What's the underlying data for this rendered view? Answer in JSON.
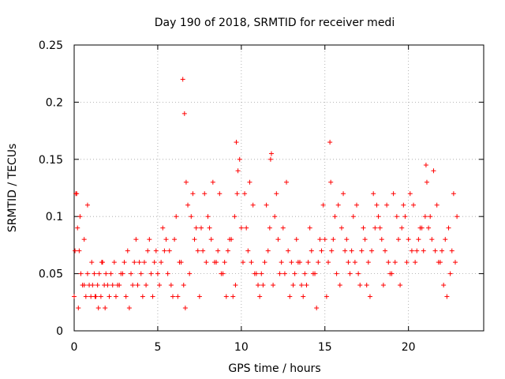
{
  "chart_data": {
    "type": "scatter",
    "title": "Day 190 of 2018, SRMTID for receiver medi",
    "xlabel": "GPS time / hours",
    "ylabel": "SRMTID / TECUs",
    "xlim": [
      0,
      24.5
    ],
    "ylim": [
      0,
      0.25
    ],
    "x_ticks": [
      0,
      5,
      10,
      15,
      20
    ],
    "x_tick_labels": [
      "0",
      "5",
      "10",
      "15",
      "20"
    ],
    "y_ticks": [
      0,
      0.05,
      0.1,
      0.15,
      0.2,
      0.25
    ],
    "y_tick_labels": [
      "0",
      "0.05",
      "0.1",
      "0.15",
      "0.2",
      "0.25"
    ],
    "grid": true,
    "marker": "+",
    "series": [
      {
        "name": "SRMTID",
        "color": "#ff0000",
        "x": [
          0.0,
          0.1,
          0.2,
          0.3,
          0.4,
          0.5,
          0.6,
          0.7,
          0.8,
          0.9,
          1.0,
          1.1,
          1.2,
          1.3,
          1.4,
          1.5,
          1.6,
          1.7,
          1.8,
          1.9,
          2.0,
          2.2,
          2.4,
          2.6,
          2.8,
          3.0,
          3.2,
          3.4,
          3.6,
          3.8,
          4.0,
          4.2,
          4.4,
          4.6,
          4.8,
          5.0,
          5.2,
          5.4,
          5.6,
          5.8,
          6.0,
          6.2,
          6.4,
          6.5,
          6.6,
          6.7,
          6.8,
          7.0,
          7.2,
          7.4,
          7.6,
          7.8,
          8.0,
          8.2,
          8.4,
          8.6,
          8.8,
          9.0,
          9.2,
          9.4,
          9.6,
          9.7,
          9.8,
          10.0,
          10.2,
          10.4,
          10.6,
          10.8,
          11.0,
          11.2,
          11.4,
          11.6,
          11.8,
          12.0,
          12.2,
          12.4,
          12.6,
          12.8,
          13.0,
          13.2,
          13.4,
          13.6,
          13.8,
          14.0,
          14.2,
          14.4,
          14.6,
          14.8,
          15.0,
          15.2,
          15.4,
          15.6,
          15.8,
          16.0,
          16.2,
          16.4,
          16.6,
          16.8,
          17.0,
          17.2,
          17.4,
          17.6,
          17.8,
          18.0,
          18.2,
          18.4,
          18.6,
          18.8,
          19.0,
          19.2,
          19.4,
          19.6,
          19.8,
          20.0,
          20.2,
          20.4,
          20.6,
          20.8,
          21.0,
          21.2,
          21.4,
          21.6,
          21.8,
          22.0,
          22.2,
          22.4,
          22.6,
          22.8,
          0.05,
          0.15,
          0.25,
          0.35,
          0.6,
          0.8,
          1.05,
          1.25,
          1.45,
          1.65,
          1.85,
          2.1,
          2.3,
          2.5,
          2.7,
          2.9,
          3.1,
          3.3,
          3.5,
          3.7,
          3.9,
          4.1,
          4.3,
          4.5,
          4.7,
          4.9,
          5.1,
          5.3,
          5.5,
          5.7,
          5.9,
          6.1,
          6.3,
          6.55,
          6.65,
          6.9,
          7.1,
          7.3,
          7.5,
          7.7,
          7.9,
          8.1,
          8.3,
          8.5,
          8.7,
          8.9,
          9.1,
          9.3,
          9.5,
          9.65,
          9.75,
          9.9,
          10.1,
          10.3,
          10.5,
          10.7,
          10.9,
          11.1,
          11.3,
          11.5,
          11.7,
          11.75,
          11.9,
          12.1,
          12.3,
          12.5,
          12.7,
          12.9,
          13.1,
          13.3,
          13.5,
          13.7,
          13.9,
          14.1,
          14.3,
          14.5,
          14.7,
          14.9,
          15.1,
          15.3,
          15.35,
          15.5,
          15.7,
          15.9,
          16.1,
          16.3,
          16.5,
          16.7,
          16.9,
          17.1,
          17.3,
          17.5,
          17.7,
          17.9,
          18.1,
          18.3,
          18.5,
          18.7,
          18.9,
          19.1,
          19.3,
          19.5,
          19.7,
          19.9,
          20.1,
          20.3,
          20.5,
          20.7,
          20.9,
          21.05,
          21.1,
          21.3,
          21.5,
          21.7,
          21.9,
          22.1,
          22.3,
          22.5,
          22.7,
          22.9
        ],
        "y": [
          0.03,
          0.12,
          0.09,
          0.07,
          0.05,
          0.04,
          0.04,
          0.03,
          0.05,
          0.04,
          0.03,
          0.04,
          0.05,
          0.03,
          0.04,
          0.05,
          0.03,
          0.06,
          0.04,
          0.05,
          0.04,
          0.05,
          0.06,
          0.04,
          0.05,
          0.06,
          0.07,
          0.05,
          0.06,
          0.04,
          0.05,
          0.06,
          0.07,
          0.05,
          0.06,
          0.05,
          0.06,
          0.07,
          0.05,
          0.04,
          0.08,
          0.03,
          0.06,
          0.22,
          0.19,
          0.13,
          0.11,
          0.1,
          0.08,
          0.07,
          0.09,
          0.12,
          0.1,
          0.08,
          0.06,
          0.07,
          0.05,
          0.06,
          0.07,
          0.08,
          0.1,
          0.165,
          0.14,
          0.09,
          0.12,
          0.07,
          0.06,
          0.05,
          0.04,
          0.05,
          0.06,
          0.07,
          0.155,
          0.1,
          0.08,
          0.06,
          0.05,
          0.07,
          0.06,
          0.05,
          0.06,
          0.04,
          0.05,
          0.06,
          0.07,
          0.05,
          0.06,
          0.07,
          0.08,
          0.06,
          0.07,
          0.1,
          0.11,
          0.09,
          0.07,
          0.06,
          0.07,
          0.06,
          0.05,
          0.07,
          0.08,
          0.06,
          0.07,
          0.09,
          0.1,
          0.08,
          0.07,
          0.06,
          0.05,
          0.06,
          0.08,
          0.09,
          0.1,
          0.08,
          0.07,
          0.06,
          0.08,
          0.09,
          0.1,
          0.09,
          0.08,
          0.07,
          0.06,
          0.07,
          0.08,
          0.09,
          0.07,
          0.06,
          0.07,
          0.12,
          0.02,
          0.1,
          0.08,
          0.11,
          0.06,
          0.03,
          0.02,
          0.06,
          0.02,
          0.03,
          0.04,
          0.03,
          0.04,
          0.05,
          0.03,
          0.02,
          0.04,
          0.08,
          0.06,
          0.03,
          0.04,
          0.08,
          0.03,
          0.07,
          0.04,
          0.09,
          0.08,
          0.07,
          0.03,
          0.1,
          0.06,
          0.04,
          0.02,
          0.05,
          0.12,
          0.09,
          0.03,
          0.07,
          0.06,
          0.09,
          0.13,
          0.06,
          0.12,
          0.05,
          0.03,
          0.08,
          0.03,
          0.04,
          0.12,
          0.15,
          0.06,
          0.09,
          0.13,
          0.11,
          0.05,
          0.03,
          0.04,
          0.11,
          0.09,
          0.15,
          0.04,
          0.12,
          0.05,
          0.09,
          0.13,
          0.03,
          0.04,
          0.08,
          0.06,
          0.03,
          0.04,
          0.09,
          0.05,
          0.02,
          0.08,
          0.11,
          0.03,
          0.165,
          0.13,
          0.08,
          0.05,
          0.04,
          0.12,
          0.08,
          0.05,
          0.1,
          0.11,
          0.04,
          0.09,
          0.04,
          0.03,
          0.12,
          0.11,
          0.09,
          0.04,
          0.11,
          0.05,
          0.12,
          0.1,
          0.04,
          0.11,
          0.06,
          0.12,
          0.11,
          0.07,
          0.09,
          0.07,
          0.145,
          0.13,
          0.1,
          0.14,
          0.11,
          0.06,
          0.04,
          0.03,
          0.05,
          0.12,
          0.1
        ]
      }
    ]
  }
}
